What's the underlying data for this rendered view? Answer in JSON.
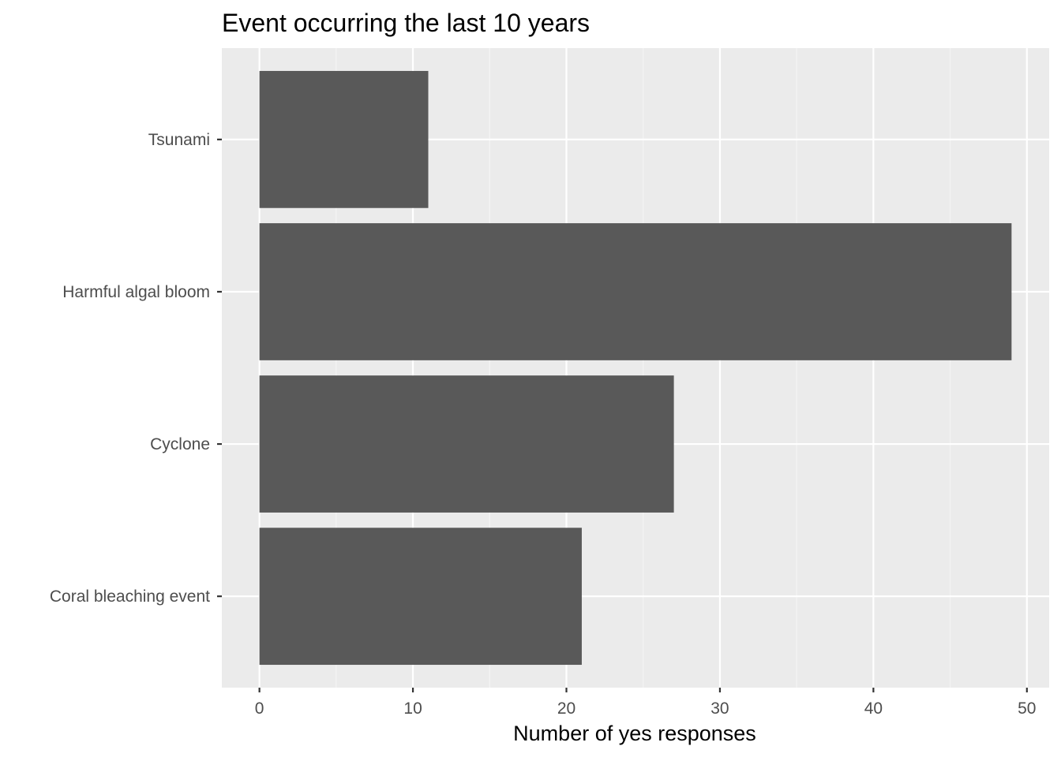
{
  "chart_data": {
    "type": "bar",
    "orientation": "horizontal",
    "title": "Event occurring the last 10 years",
    "xlabel": "Number of yes responses",
    "ylabel": "",
    "categories": [
      "Coral bleaching event",
      "Cyclone",
      "Harmful algal bloom",
      "Tsunami"
    ],
    "values": [
      21,
      27,
      49,
      11
    ],
    "xlim": [
      -2.45,
      51.45
    ],
    "xticks": [
      0,
      10,
      20,
      30,
      40,
      50
    ],
    "xtick_labels": [
      "0",
      "10",
      "20",
      "30",
      "40",
      "50"
    ],
    "grid": true,
    "legend": "none",
    "colors": {
      "bar": "#595959",
      "panel_background": "#ebebeb",
      "grid_major": "#ffffff",
      "grid_minor": "#f5f5f5",
      "tick_text": "#4d4d4d",
      "tick_mark": "#333333"
    }
  }
}
